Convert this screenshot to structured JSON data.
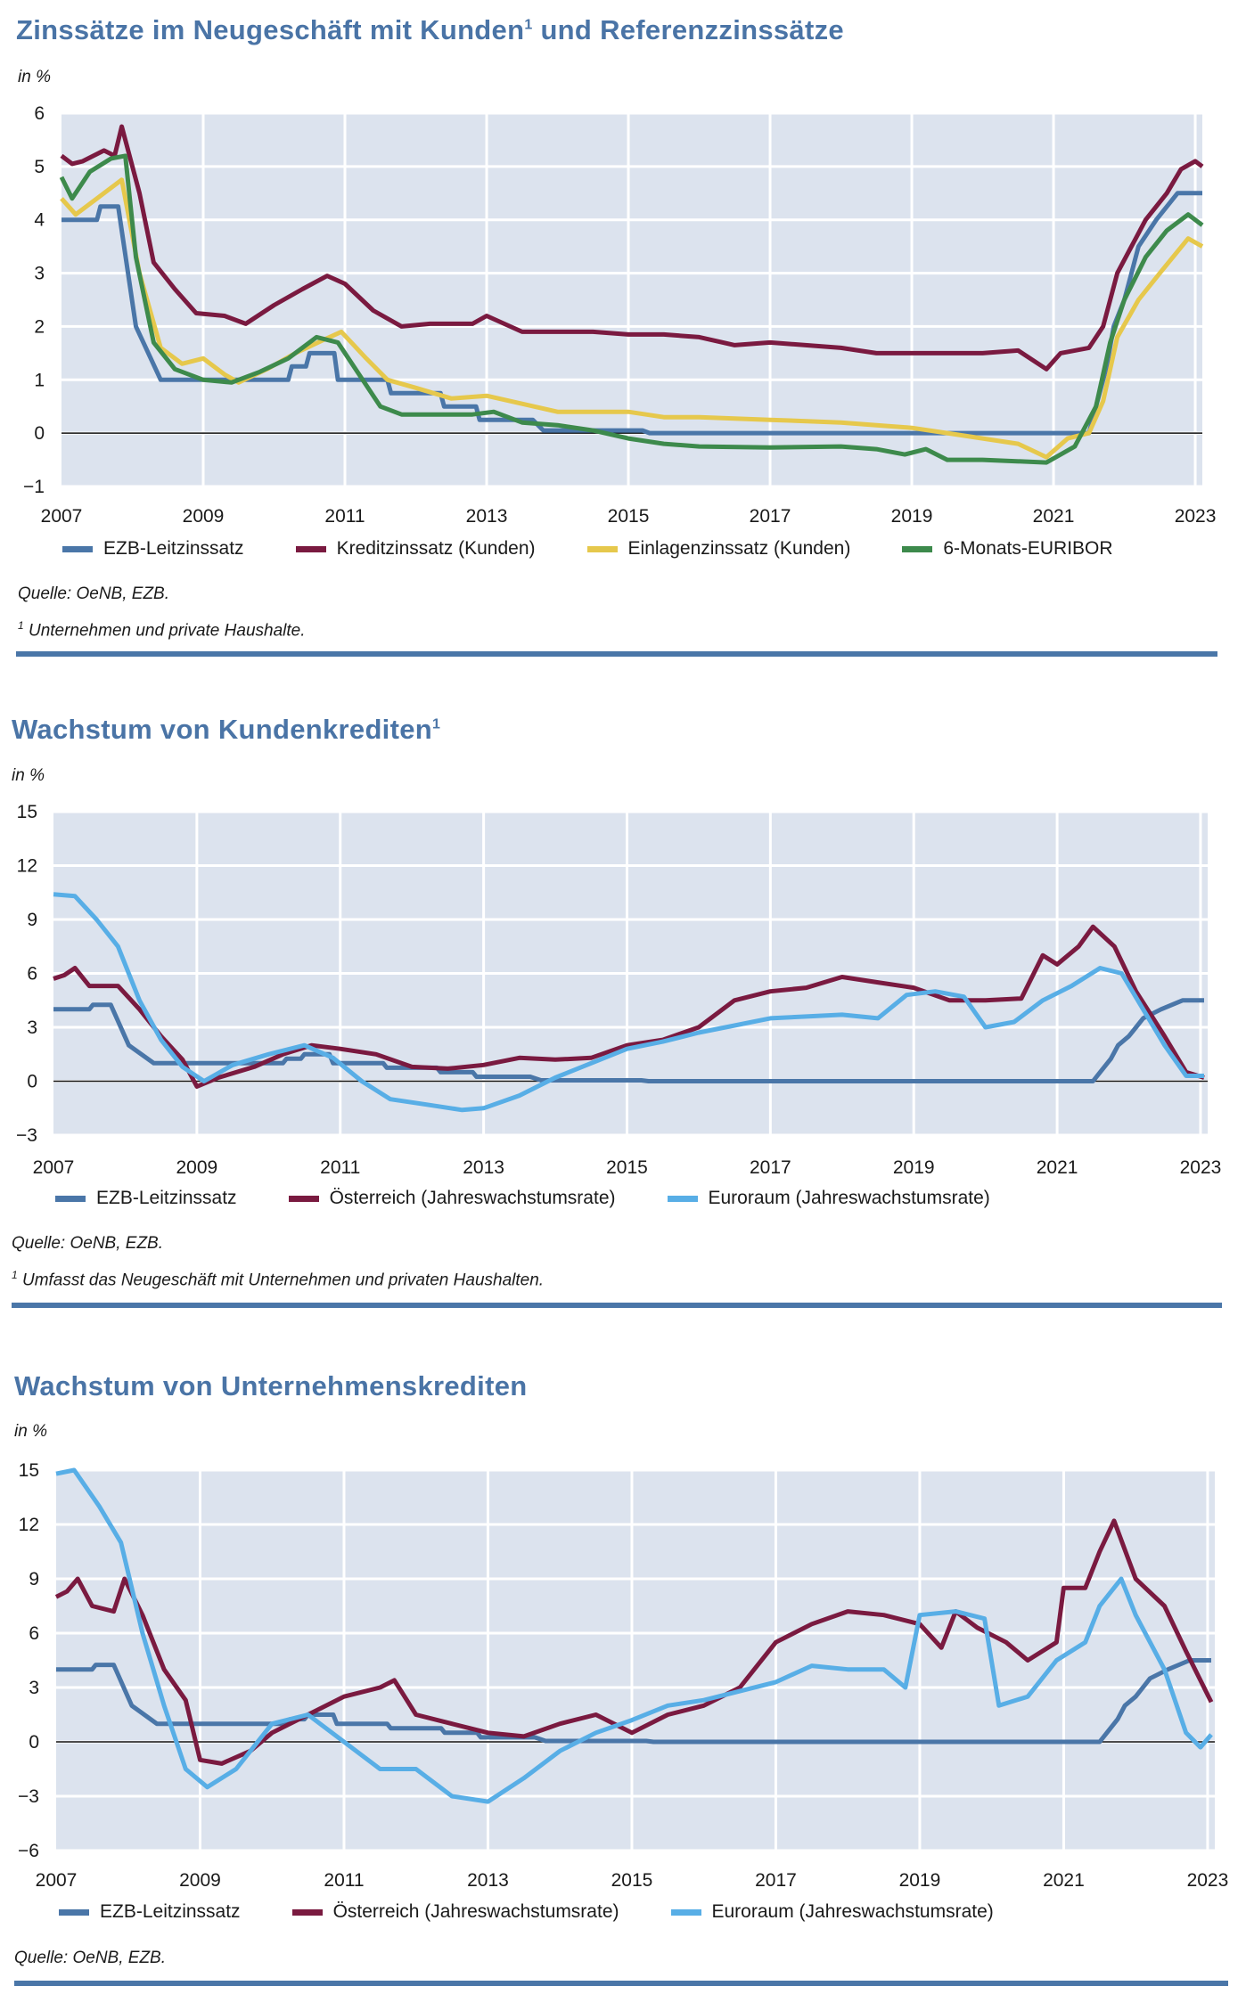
{
  "colors": {
    "title": "#4a74a6",
    "ezb": "#4a76a8",
    "kredit": "#7a1a40",
    "einlagen": "#e6c84c",
    "euribor": "#3d8a4c",
    "oesterreich": "#7a1a40",
    "euroraum": "#58aee6",
    "plot_bg": "#dce3ee"
  },
  "chart_data": [
    {
      "type": "line",
      "title": "Zinssätze im Neugeschäft mit Kunden",
      "title_sup": "1",
      "title_suffix": " und Referenzzinssätze",
      "ylabel": "in %",
      "xlabel": "",
      "ylim": [
        -1,
        6
      ],
      "yticks": [
        -1,
        0,
        1,
        2,
        3,
        4,
        5,
        6
      ],
      "ytick_labels": [
        "−1",
        "0",
        "1",
        "2",
        "3",
        "4",
        "5",
        "6"
      ],
      "xlim": [
        2007,
        2023.1
      ],
      "xticks": [
        2007,
        2009,
        2011,
        2013,
        2015,
        2017,
        2019,
        2021,
        2023
      ],
      "xtick_labels": [
        "2007",
        "2009",
        "2011",
        "2013",
        "2015",
        "2017",
        "2019",
        "2021",
        "2023"
      ],
      "grid": true,
      "legend_position": "bottom",
      "source": "Quelle: OeNB, EZB.",
      "footnote_mark": "1",
      "footnote": " Unternehmen und private Haushalte.",
      "series": [
        {
          "name": "EZB-Leitzinssatz",
          "color_key": "ezb",
          "x": [
            2007,
            2007.5,
            2007.55,
            2007.8,
            2008.05,
            2008.4,
            2010.2,
            2010.25,
            2010.45,
            2010.5,
            2010.85,
            2010.9,
            2011.6,
            2011.65,
            2012.35,
            2012.4,
            2012.85,
            2012.9,
            2013.65,
            2013.8,
            2015.2,
            2015.3,
            2021.5,
            2021.6,
            2021.75,
            2021.85,
            2022.0,
            2022.1,
            2022.2,
            2022.45,
            2022.75,
            2023.1
          ],
          "y": [
            4,
            4,
            4.25,
            4.25,
            2,
            1,
            1,
            1.25,
            1.25,
            1.5,
            1.5,
            1,
            1,
            0.75,
            0.75,
            0.5,
            0.5,
            0.25,
            0.25,
            0.05,
            0.05,
            0,
            0,
            0.5,
            1.25,
            2,
            2.5,
            3,
            3.5,
            4,
            4.5,
            4.5
          ]
        },
        {
          "name": "Kreditzinssatz (Kunden)",
          "color_key": "kredit",
          "x": [
            2007,
            2007.15,
            2007.3,
            2007.6,
            2007.75,
            2007.85,
            2008.1,
            2008.3,
            2008.6,
            2008.9,
            2009.3,
            2009.6,
            2010,
            2010.4,
            2010.75,
            2011,
            2011.4,
            2011.8,
            2012.2,
            2012.8,
            2013,
            2013.5,
            2014,
            2014.5,
            2015,
            2015.5,
            2016,
            2016.5,
            2017,
            2017.5,
            2018,
            2018.5,
            2019,
            2019.5,
            2020,
            2020.5,
            2020.9,
            2021.1,
            2021.5,
            2021.7,
            2021.9,
            2022.1,
            2022.3,
            2022.6,
            2022.8,
            2023,
            2023.1
          ],
          "y": [
            5.2,
            5.05,
            5.1,
            5.3,
            5.2,
            5.75,
            4.5,
            3.2,
            2.7,
            2.25,
            2.2,
            2.05,
            2.4,
            2.7,
            2.95,
            2.8,
            2.3,
            2.0,
            2.05,
            2.05,
            2.2,
            1.9,
            1.9,
            1.9,
            1.85,
            1.85,
            1.8,
            1.65,
            1.7,
            1.65,
            1.6,
            1.5,
            1.5,
            1.5,
            1.5,
            1.55,
            1.2,
            1.5,
            1.6,
            2.0,
            3.0,
            3.5,
            4.0,
            4.5,
            4.95,
            5.1,
            5.0
          ]
        },
        {
          "name": "Einlagenzinssatz (Kunden)",
          "color_key": "einlagen",
          "x": [
            2007,
            2007.2,
            2007.5,
            2007.85,
            2008.1,
            2008.4,
            2008.7,
            2009,
            2009.3,
            2009.5,
            2009.9,
            2010.3,
            2010.7,
            2010.95,
            2011.3,
            2011.6,
            2012,
            2012.5,
            2013,
            2013.5,
            2014,
            2015,
            2015.5,
            2016,
            2017,
            2018,
            2018.5,
            2019,
            2019.5,
            2020,
            2020.5,
            2020.9,
            2021.2,
            2021.5,
            2021.7,
            2021.9,
            2022.2,
            2022.5,
            2022.9,
            2023.1
          ],
          "y": [
            4.4,
            4.1,
            4.4,
            4.75,
            3.0,
            1.6,
            1.3,
            1.4,
            1.1,
            0.95,
            1.2,
            1.5,
            1.75,
            1.9,
            1.4,
            1.0,
            0.85,
            0.65,
            0.7,
            0.55,
            0.4,
            0.4,
            0.3,
            0.3,
            0.25,
            0.2,
            0.15,
            0.1,
            0.0,
            -0.1,
            -0.2,
            -0.45,
            -0.1,
            0,
            0.6,
            1.8,
            2.5,
            3.0,
            3.65,
            3.5
          ]
        },
        {
          "name": "6-Monats-EURIBOR",
          "color_key": "euribor",
          "x": [
            2007,
            2007.15,
            2007.4,
            2007.7,
            2007.9,
            2008.05,
            2008.3,
            2008.6,
            2009,
            2009.4,
            2009.8,
            2010.2,
            2010.6,
            2010.9,
            2011.2,
            2011.5,
            2011.8,
            2012.3,
            2012.8,
            2013.1,
            2013.5,
            2014,
            2014.5,
            2015,
            2015.5,
            2016,
            2017,
            2018,
            2018.5,
            2018.9,
            2019.2,
            2019.5,
            2020,
            2020.9,
            2021.3,
            2021.6,
            2021.8,
            2022,
            2022.3,
            2022.6,
            2022.9,
            2023.1
          ],
          "y": [
            4.8,
            4.4,
            4.9,
            5.15,
            5.2,
            3.3,
            1.7,
            1.2,
            1.0,
            0.95,
            1.15,
            1.4,
            1.8,
            1.7,
            1.1,
            0.5,
            0.35,
            0.35,
            0.35,
            0.4,
            0.2,
            0.15,
            0.05,
            -0.1,
            -0.2,
            -0.25,
            -0.27,
            -0.25,
            -0.3,
            -0.4,
            -0.3,
            -0.5,
            -0.5,
            -0.55,
            -0.25,
            0.5,
            1.7,
            2.5,
            3.3,
            3.8,
            4.1,
            3.9
          ]
        }
      ]
    },
    {
      "type": "line",
      "title": "Wachstum von Kundenkrediten",
      "title_sup": "1",
      "title_suffix": "",
      "ylabel": "in %",
      "xlabel": "",
      "ylim": [
        -3,
        15
      ],
      "yticks": [
        -3,
        0,
        3,
        6,
        9,
        12,
        15
      ],
      "ytick_labels": [
        "−3",
        "0",
        "3",
        "6",
        "9",
        "12",
        "15"
      ],
      "xlim": [
        2007,
        2023.1
      ],
      "xticks": [
        2007,
        2009,
        2011,
        2013,
        2015,
        2017,
        2019,
        2021,
        2023
      ],
      "xtick_labels": [
        "2007",
        "2009",
        "2011",
        "2013",
        "2015",
        "2017",
        "2019",
        "2021",
        "2023"
      ],
      "grid": true,
      "legend_position": "bottom",
      "source": "Quelle: OeNB, EZB.",
      "footnote_mark": "1",
      "footnote": " Umfasst das Neugeschäft mit Unternehmen und privaten Haushalten.",
      "series": [
        {
          "name": "EZB-Leitzinssatz",
          "color_key": "ezb",
          "x": [
            2007,
            2007.5,
            2007.55,
            2007.8,
            2008.05,
            2008.4,
            2010.2,
            2010.25,
            2010.45,
            2010.5,
            2010.85,
            2010.9,
            2011.6,
            2011.65,
            2012.35,
            2012.4,
            2012.85,
            2012.9,
            2013.65,
            2013.8,
            2015.2,
            2015.3,
            2021.5,
            2021.6,
            2021.75,
            2021.85,
            2022.0,
            2022.1,
            2022.2,
            2022.45,
            2022.75,
            2023.05
          ],
          "y": [
            4,
            4,
            4.25,
            4.25,
            2,
            1,
            1,
            1.25,
            1.25,
            1.5,
            1.5,
            1,
            1,
            0.75,
            0.75,
            0.5,
            0.5,
            0.25,
            0.25,
            0.05,
            0.05,
            0,
            0,
            0.5,
            1.25,
            2,
            2.5,
            3,
            3.5,
            4,
            4.5,
            4.5
          ]
        },
        {
          "name": "Österreich (Jahreswachstumsrate)",
          "color_key": "oesterreich",
          "x": [
            2007,
            2007.15,
            2007.3,
            2007.5,
            2007.9,
            2008.2,
            2008.5,
            2008.8,
            2009,
            2009.3,
            2009.8,
            2010.2,
            2010.6,
            2011,
            2011.5,
            2012,
            2012.5,
            2013,
            2013.5,
            2014,
            2014.5,
            2015,
            2015.5,
            2016,
            2016.5,
            2017,
            2017.5,
            2018,
            2018.5,
            2019,
            2019.5,
            2020,
            2020.5,
            2020.8,
            2021,
            2021.3,
            2021.5,
            2021.8,
            2022.1,
            2022.5,
            2022.8,
            2023.05
          ],
          "y": [
            5.7,
            5.9,
            6.3,
            5.3,
            5.3,
            4.0,
            2.5,
            1.2,
            -0.3,
            0.2,
            0.8,
            1.5,
            2.0,
            1.8,
            1.5,
            0.8,
            0.7,
            0.9,
            1.3,
            1.2,
            1.3,
            2.0,
            2.3,
            3.0,
            4.5,
            5.0,
            5.2,
            5.8,
            5.5,
            5.2,
            4.5,
            4.5,
            4.6,
            7.0,
            6.5,
            7.5,
            8.6,
            7.5,
            5.0,
            2.5,
            0.5,
            0.2
          ]
        },
        {
          "name": "Euroraum (Jahreswachstumsrate)",
          "color_key": "euroraum",
          "x": [
            2007,
            2007.3,
            2007.6,
            2007.9,
            2008.2,
            2008.5,
            2008.8,
            2009.1,
            2009.5,
            2010,
            2010.5,
            2010.9,
            2011.3,
            2011.7,
            2012.2,
            2012.7,
            2013,
            2013.5,
            2014,
            2014.5,
            2015,
            2015.5,
            2016,
            2016.5,
            2017,
            2017.5,
            2018,
            2018.5,
            2018.9,
            2019.3,
            2019.7,
            2020,
            2020.4,
            2020.8,
            2021.2,
            2021.6,
            2021.9,
            2022.2,
            2022.5,
            2022.8,
            2023.05
          ],
          "y": [
            10.4,
            10.3,
            9.0,
            7.5,
            4.5,
            2.3,
            0.8,
            0.0,
            0.9,
            1.5,
            2.0,
            1.3,
            0.0,
            -1.0,
            -1.3,
            -1.6,
            -1.5,
            -0.8,
            0.2,
            1.0,
            1.8,
            2.2,
            2.7,
            3.1,
            3.5,
            3.6,
            3.7,
            3.5,
            4.8,
            5.0,
            4.7,
            3.0,
            3.3,
            4.5,
            5.3,
            6.3,
            6.0,
            4.0,
            2.0,
            0.3,
            0.3
          ]
        }
      ]
    },
    {
      "type": "line",
      "title": "Wachstum von Unternehmenskrediten",
      "title_sup": "",
      "title_suffix": "",
      "ylabel": "in %",
      "xlabel": "",
      "ylim": [
        -6,
        15
      ],
      "yticks": [
        -6,
        -3,
        0,
        3,
        6,
        9,
        12,
        15
      ],
      "ytick_labels": [
        "−6",
        "−3",
        "0",
        "3",
        "6",
        "9",
        "12",
        "15"
      ],
      "xlim": [
        2007,
        2023.1
      ],
      "xticks": [
        2007,
        2009,
        2011,
        2013,
        2015,
        2017,
        2019,
        2021,
        2023
      ],
      "xtick_labels": [
        "2007",
        "2009",
        "2011",
        "2013",
        "2015",
        "2017",
        "2019",
        "2021",
        "2023"
      ],
      "grid": true,
      "legend_position": "bottom",
      "source": "Quelle: OeNB, EZB.",
      "series": [
        {
          "name": "EZB-Leitzinssatz",
          "color_key": "ezb",
          "x": [
            2007,
            2007.5,
            2007.55,
            2007.8,
            2008.05,
            2008.4,
            2010.2,
            2010.25,
            2010.45,
            2010.5,
            2010.85,
            2010.9,
            2011.6,
            2011.65,
            2012.35,
            2012.4,
            2012.85,
            2012.9,
            2013.65,
            2013.8,
            2015.2,
            2015.3,
            2021.5,
            2021.6,
            2021.75,
            2021.85,
            2022.0,
            2022.1,
            2022.2,
            2022.45,
            2022.75,
            2023.05
          ],
          "y": [
            4,
            4,
            4.25,
            4.25,
            2,
            1,
            1,
            1.25,
            1.25,
            1.5,
            1.5,
            1,
            1,
            0.75,
            0.75,
            0.5,
            0.5,
            0.25,
            0.25,
            0.05,
            0.05,
            0,
            0,
            0.5,
            1.25,
            2,
            2.5,
            3,
            3.5,
            4,
            4.5,
            4.5
          ]
        },
        {
          "name": "Österreich (Jahreswachstumsrate)",
          "color_key": "oesterreich",
          "x": [
            2007,
            2007.15,
            2007.3,
            2007.5,
            2007.8,
            2007.95,
            2008.2,
            2008.5,
            2008.8,
            2009,
            2009.3,
            2009.7,
            2010,
            2010.5,
            2011,
            2011.5,
            2011.7,
            2012,
            2012.5,
            2013,
            2013.5,
            2014,
            2014.5,
            2015,
            2015.5,
            2016,
            2016.5,
            2017,
            2017.5,
            2018,
            2018.5,
            2019,
            2019.3,
            2019.5,
            2019.8,
            2020.2,
            2020.5,
            2020.9,
            2021,
            2021.3,
            2021.5,
            2021.7,
            2022,
            2022.4,
            2022.7,
            2023.05
          ],
          "y": [
            8,
            8.3,
            9.0,
            7.5,
            7.2,
            9.0,
            7.0,
            4.0,
            2.3,
            -1.0,
            -1.2,
            -0.5,
            0.5,
            1.5,
            2.5,
            3.0,
            3.4,
            1.5,
            1.0,
            0.5,
            0.3,
            1.0,
            1.5,
            0.5,
            1.5,
            2.0,
            3.0,
            5.5,
            6.5,
            7.2,
            7.0,
            6.5,
            5.2,
            7.2,
            6.3,
            5.5,
            4.5,
            5.5,
            8.5,
            8.5,
            10.5,
            12.2,
            9.0,
            7.5,
            5.0,
            2.2
          ]
        },
        {
          "name": "Euroraum (Jahreswachstumsrate)",
          "color_key": "euroraum",
          "x": [
            2007,
            2007.25,
            2007.6,
            2007.9,
            2008.2,
            2008.5,
            2008.8,
            2009.1,
            2009.5,
            2010,
            2010.5,
            2011,
            2011.5,
            2012,
            2012.5,
            2013,
            2013.5,
            2014,
            2014.5,
            2015,
            2015.5,
            2016,
            2016.5,
            2017,
            2017.5,
            2018,
            2018.5,
            2018.8,
            2019,
            2019.5,
            2019.9,
            2020.1,
            2020.5,
            2020.9,
            2021.3,
            2021.5,
            2021.8,
            2022,
            2022.4,
            2022.7,
            2022.9,
            2023.05
          ],
          "y": [
            14.8,
            15.0,
            13.0,
            11.0,
            6.0,
            2.0,
            -1.5,
            -2.5,
            -1.5,
            1.0,
            1.5,
            0.0,
            -1.5,
            -1.5,
            -3.0,
            -3.3,
            -2.0,
            -0.5,
            0.5,
            1.2,
            2.0,
            2.3,
            2.8,
            3.3,
            4.2,
            4.0,
            4.0,
            3.0,
            7.0,
            7.2,
            6.8,
            2.0,
            2.5,
            4.5,
            5.5,
            7.5,
            9.0,
            7.0,
            4.0,
            0.5,
            -0.3,
            0.4
          ]
        }
      ]
    }
  ]
}
